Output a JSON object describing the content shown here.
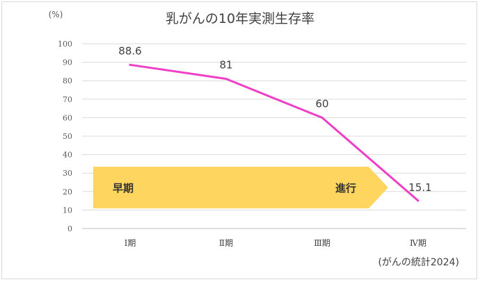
{
  "chart_data": {
    "type": "line",
    "title": "乳がんの10年実測生存率",
    "ylabel": "(%)",
    "xlabel": "",
    "ylim": [
      0,
      100
    ],
    "yticks": [
      0,
      10,
      20,
      30,
      40,
      50,
      60,
      70,
      80,
      90,
      100
    ],
    "categories": [
      "Ⅰ期",
      "Ⅱ期",
      "Ⅲ期",
      "Ⅳ期"
    ],
    "series": [
      {
        "values": [
          88.6,
          81,
          60,
          15.1
        ],
        "color": "#ee3fc6"
      }
    ],
    "data_labels": [
      "88.6",
      "81",
      "60",
      "15.1"
    ],
    "grid": true,
    "annotations": {
      "arrow_start": "早期",
      "arrow_end": "進行",
      "arrow_color": "#fdd55f",
      "source": "(がんの統計2024)"
    }
  }
}
